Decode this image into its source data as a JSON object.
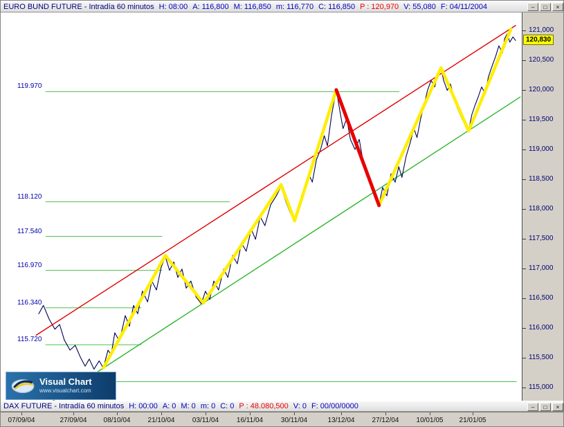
{
  "icons": {
    "minimize_glyph": "–",
    "maximize_glyph": "□",
    "close_glyph": "×"
  },
  "top_pane": {
    "title": "EURO BUND FUTURE - Intradía 60 minutos",
    "fields": [
      {
        "label": "H:",
        "value": "08:00",
        "color": "blue"
      },
      {
        "label": "A:",
        "value": "116,800",
        "color": "blue"
      },
      {
        "label": "M:",
        "value": "116,850",
        "color": "blue"
      },
      {
        "label": "m:",
        "value": "116,770",
        "color": "blue"
      },
      {
        "label": "C:",
        "value": "116,850",
        "color": "blue"
      },
      {
        "label": "P :",
        "value": "120,970",
        "color": "red"
      },
      {
        "label": "V:",
        "value": "55,080",
        "color": "blue"
      },
      {
        "label": "F:",
        "value": "04/11/2004",
        "color": "blue"
      }
    ]
  },
  "bottom_pane": {
    "title": "DAX FUTURE - Intradía 60 minutos",
    "fields": [
      {
        "label": "H:",
        "value": "00:00",
        "color": "blue"
      },
      {
        "label": "A:",
        "value": "0",
        "color": "blue"
      },
      {
        "label": "M:",
        "value": "0",
        "color": "blue"
      },
      {
        "label": "m:",
        "value": "0",
        "color": "blue"
      },
      {
        "label": "C:",
        "value": "0",
        "color": "blue"
      },
      {
        "label": "P :",
        "value": "48.080,500",
        "color": "red"
      },
      {
        "label": "V:",
        "value": "0",
        "color": "blue"
      },
      {
        "label": "F:",
        "value": "00/00/0000",
        "color": "blue"
      }
    ]
  },
  "logo": {
    "name": "Visual Chart",
    "url_text": "www.visualchart.com"
  },
  "chart_data": {
    "type": "line",
    "title": "EURO BUND FUTURE - Intradía 60 minutos",
    "ylim": [
      114.78,
      121.3
    ],
    "grid": "off",
    "last_price": {
      "value": 120.83,
      "label": "120,830",
      "badge_bg": "#ffff00"
    },
    "colors": {
      "price": "#000050",
      "level_green": "#4cc04c",
      "channel_green": "#2db52d",
      "channel_red": "#e00000",
      "wave_yellow": "#ffee00",
      "wave_red": "#e80000"
    },
    "y_ticks": [
      {
        "value": 121.0,
        "label": "121,000"
      },
      {
        "value": 120.5,
        "label": "120,500"
      },
      {
        "value": 120.0,
        "label": "120,000"
      },
      {
        "value": 119.5,
        "label": "119,500"
      },
      {
        "value": 119.0,
        "label": "119,000"
      },
      {
        "value": 118.5,
        "label": "118,500"
      },
      {
        "value": 118.0,
        "label": "118,000"
      },
      {
        "value": 117.5,
        "label": "117,500"
      },
      {
        "value": 117.0,
        "label": "117,000"
      },
      {
        "value": 116.5,
        "label": "116,500"
      },
      {
        "value": 116.0,
        "label": "116,000"
      },
      {
        "value": 115.5,
        "label": "115,500"
      },
      {
        "value": 115.0,
        "label": "115,000"
      }
    ],
    "x_ticks": [
      {
        "x": 0.04,
        "label": "07/09/04"
      },
      {
        "x": 0.139,
        "label": "27/09/04"
      },
      {
        "x": 0.223,
        "label": "08/10/04"
      },
      {
        "x": 0.308,
        "label": "21/10/04"
      },
      {
        "x": 0.393,
        "label": "03/11/04"
      },
      {
        "x": 0.478,
        "label": "16/11/04"
      },
      {
        "x": 0.563,
        "label": "30/11/04"
      },
      {
        "x": 0.653,
        "label": "13/12/04"
      },
      {
        "x": 0.738,
        "label": "27/12/04"
      },
      {
        "x": 0.823,
        "label": "10/01/05"
      },
      {
        "x": 0.906,
        "label": "21/01/05"
      }
    ],
    "series": [
      {
        "name": "EURO BUND FUTURE 60-min close",
        "points": [
          [
            0.073,
            116.24
          ],
          [
            0.082,
            116.38
          ],
          [
            0.093,
            116.15
          ],
          [
            0.104,
            115.98
          ],
          [
            0.113,
            116.06
          ],
          [
            0.122,
            115.8
          ],
          [
            0.133,
            115.63
          ],
          [
            0.143,
            115.71
          ],
          [
            0.153,
            115.51
          ],
          [
            0.162,
            115.36
          ],
          [
            0.17,
            115.48
          ],
          [
            0.179,
            115.31
          ],
          [
            0.189,
            115.45
          ],
          [
            0.197,
            115.33
          ],
          [
            0.206,
            115.63
          ],
          [
            0.212,
            115.55
          ],
          [
            0.219,
            115.92
          ],
          [
            0.228,
            115.78
          ],
          [
            0.239,
            116.21
          ],
          [
            0.247,
            116.03
          ],
          [
            0.255,
            116.38
          ],
          [
            0.263,
            116.24
          ],
          [
            0.272,
            116.62
          ],
          [
            0.282,
            116.44
          ],
          [
            0.29,
            116.79
          ],
          [
            0.299,
            116.64
          ],
          [
            0.308,
            117.02
          ],
          [
            0.316,
            117.2
          ],
          [
            0.324,
            116.97
          ],
          [
            0.332,
            117.11
          ],
          [
            0.34,
            116.85
          ],
          [
            0.348,
            116.99
          ],
          [
            0.356,
            116.67
          ],
          [
            0.365,
            116.79
          ],
          [
            0.375,
            116.52
          ],
          [
            0.385,
            116.41
          ],
          [
            0.393,
            116.62
          ],
          [
            0.401,
            116.48
          ],
          [
            0.409,
            116.79
          ],
          [
            0.418,
            116.64
          ],
          [
            0.428,
            116.99
          ],
          [
            0.436,
            116.85
          ],
          [
            0.445,
            117.22
          ],
          [
            0.454,
            117.08
          ],
          [
            0.462,
            117.43
          ],
          [
            0.471,
            117.29
          ],
          [
            0.481,
            117.66
          ],
          [
            0.489,
            117.49
          ],
          [
            0.498,
            117.87
          ],
          [
            0.507,
            117.72
          ],
          [
            0.518,
            118.07
          ],
          [
            0.529,
            118.22
          ],
          [
            0.538,
            118.38
          ],
          [
            0.547,
            118.13
          ],
          [
            0.555,
            117.95
          ],
          [
            0.564,
            117.8
          ],
          [
            0.574,
            118.07
          ],
          [
            0.582,
            118.27
          ],
          [
            0.591,
            118.59
          ],
          [
            0.598,
            118.45
          ],
          [
            0.606,
            118.83
          ],
          [
            0.614,
            119.0
          ],
          [
            0.621,
            119.23
          ],
          [
            0.627,
            119.06
          ],
          [
            0.635,
            119.58
          ],
          [
            0.64,
            119.81
          ],
          [
            0.644,
            120.01
          ],
          [
            0.651,
            119.64
          ],
          [
            0.657,
            119.35
          ],
          [
            0.664,
            119.52
          ],
          [
            0.671,
            119.17
          ],
          [
            0.68,
            119.0
          ],
          [
            0.688,
            119.17
          ],
          [
            0.696,
            118.77
          ],
          [
            0.704,
            118.53
          ],
          [
            0.712,
            118.36
          ],
          [
            0.72,
            118.15
          ],
          [
            0.726,
            118.07
          ],
          [
            0.733,
            118.36
          ],
          [
            0.741,
            118.22
          ],
          [
            0.749,
            118.59
          ],
          [
            0.757,
            118.45
          ],
          [
            0.764,
            118.71
          ],
          [
            0.77,
            118.53
          ],
          [
            0.778,
            118.88
          ],
          [
            0.786,
            119.12
          ],
          [
            0.793,
            119.35
          ],
          [
            0.799,
            119.2
          ],
          [
            0.806,
            119.52
          ],
          [
            0.813,
            119.76
          ],
          [
            0.819,
            119.99
          ],
          [
            0.826,
            120.16
          ],
          [
            0.833,
            120.05
          ],
          [
            0.839,
            120.28
          ],
          [
            0.845,
            120.37
          ],
          [
            0.85,
            120.16
          ],
          [
            0.857,
            119.99
          ],
          [
            0.863,
            120.1
          ],
          [
            0.87,
            119.87
          ],
          [
            0.876,
            119.7
          ],
          [
            0.885,
            119.52
          ],
          [
            0.891,
            119.41
          ],
          [
            0.898,
            119.31
          ],
          [
            0.904,
            119.58
          ],
          [
            0.911,
            119.76
          ],
          [
            0.916,
            119.87
          ],
          [
            0.923,
            120.05
          ],
          [
            0.93,
            119.93
          ],
          [
            0.936,
            120.22
          ],
          [
            0.943,
            120.4
          ],
          [
            0.95,
            120.57
          ],
          [
            0.956,
            120.74
          ],
          [
            0.963,
            120.62
          ],
          [
            0.967,
            120.86
          ],
          [
            0.972,
            120.94
          ],
          [
            0.977,
            120.8
          ],
          [
            0.983,
            120.89
          ],
          [
            0.988,
            120.83
          ]
        ]
      }
    ],
    "overlays": {
      "red_trendline": [
        [
          0.068,
          115.88
        ],
        [
          0.988,
          121.08
        ]
      ],
      "green_trendline": [
        [
          0.09,
          114.72
        ],
        [
          0.997,
          119.88
        ]
      ],
      "yellow_zigzag_1": [
        [
          0.197,
          115.33
        ],
        [
          0.316,
          117.22
        ],
        [
          0.389,
          116.42
        ],
        [
          0.538,
          118.41
        ],
        [
          0.564,
          117.8
        ],
        [
          0.644,
          120.0
        ]
      ],
      "yellow_zigzag_2": [
        [
          0.726,
          118.06
        ],
        [
          0.845,
          120.37
        ],
        [
          0.898,
          119.31
        ],
        [
          0.979,
          121.02
        ]
      ],
      "red_zigzag": [
        [
          0.644,
          120.0
        ],
        [
          0.726,
          118.06
        ]
      ],
      "levels": [
        {
          "label": "119.970",
          "price": 119.97,
          "x1": 0.086,
          "x2": 0.765
        },
        {
          "label": "118.120",
          "price": 118.12,
          "x1": 0.086,
          "x2": 0.44
        },
        {
          "label": "117.540",
          "price": 117.54,
          "x1": 0.086,
          "x2": 0.31
        },
        {
          "label": "116.970",
          "price": 116.97,
          "x1": 0.086,
          "x2": 0.31
        },
        {
          "label": "116.340",
          "price": 116.34,
          "x1": 0.086,
          "x2": 0.27
        },
        {
          "label": "115.720",
          "price": 115.72,
          "x1": 0.086,
          "x2": 0.27
        },
        {
          "label": "",
          "price": 115.1,
          "x1": 0.21,
          "x2": 0.99
        }
      ]
    }
  }
}
